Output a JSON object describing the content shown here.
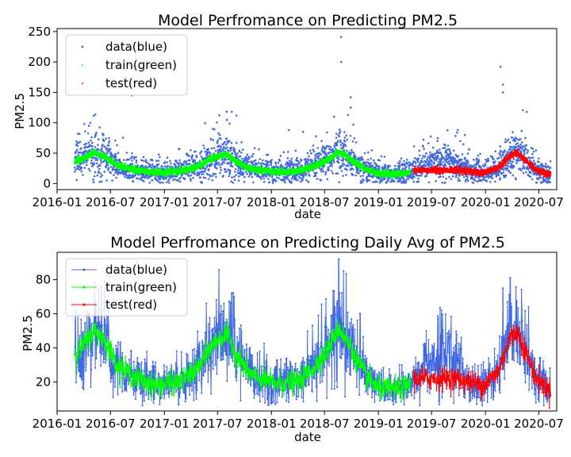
{
  "figure": {
    "background": "#ffffff"
  },
  "chart_data": [
    {
      "type": "scatter",
      "title": "Model Perfromance on Predicting PM2.5",
      "xlabel": "date",
      "ylabel": "PM2.5",
      "x_range": [
        "2016-01-01",
        "2020-08-31"
      ],
      "ylim": [
        -10,
        255
      ],
      "yticks": [
        0,
        50,
        100,
        150,
        200,
        250
      ],
      "xticks": [
        "2016-01",
        "2016-07",
        "2017-01",
        "2017-07",
        "2018-01",
        "2018-07",
        "2019-01",
        "2019-07",
        "2020-01",
        "2020-07"
      ],
      "grid": false,
      "legend": {
        "position": "top-left",
        "marker_only": true
      },
      "series": [
        {
          "name": "data(blue)",
          "color": "#4169e1",
          "role": "data",
          "x_range": [
            "2016-03-01",
            "2020-08-10"
          ],
          "level": [
            [
              0,
              36
            ],
            [
              0.02,
              42
            ],
            [
              0.04,
              50
            ],
            [
              0.06,
              46
            ],
            [
              0.09,
              30
            ],
            [
              0.13,
              22
            ],
            [
              0.17,
              18
            ],
            [
              0.22,
              20
            ],
            [
              0.26,
              28
            ],
            [
              0.28,
              38
            ],
            [
              0.3,
              45
            ],
            [
              0.32,
              48
            ],
            [
              0.34,
              36
            ],
            [
              0.37,
              24
            ],
            [
              0.42,
              19
            ],
            [
              0.47,
              20
            ],
            [
              0.5,
              28
            ],
            [
              0.53,
              38
            ],
            [
              0.555,
              52
            ],
            [
              0.58,
              40
            ],
            [
              0.61,
              24
            ],
            [
              0.64,
              16
            ],
            [
              0.69,
              16
            ],
            [
              0.72,
              24
            ],
            [
              0.75,
              32
            ],
            [
              0.78,
              40
            ],
            [
              0.8,
              32
            ],
            [
              0.83,
              20
            ],
            [
              0.86,
              18
            ],
            [
              0.89,
              26
            ],
            [
              0.915,
              46
            ],
            [
              0.93,
              50
            ],
            [
              0.95,
              36
            ],
            [
              0.97,
              22
            ],
            [
              1,
              15
            ]
          ],
          "outliers": [
            [
              0.56,
              241
            ],
            [
              0.56,
              200
            ],
            [
              0.895,
              192
            ],
            [
              0.9,
              163
            ],
            [
              0.9,
              150
            ],
            [
              0.12,
              145
            ],
            [
              0.58,
              142
            ],
            [
              0.95,
              118
            ],
            [
              0.33,
              118
            ],
            [
              0.34,
              112
            ],
            [
              0.58,
              125
            ],
            [
              0.02,
              98
            ],
            [
              0.03,
              95
            ],
            [
              0.32,
              105
            ],
            [
              0.45,
              88
            ],
            [
              0.48,
              85
            ],
            [
              0.545,
              110
            ],
            [
              0.805,
              88
            ],
            [
              0.82,
              80
            ]
          ]
        },
        {
          "name": "train(green)",
          "color": "#00ff00",
          "role": "fit",
          "x_range": [
            "2016-03-01",
            "2019-04-20"
          ],
          "level": [
            [
              0,
              36
            ],
            [
              0.02,
              42
            ],
            [
              0.04,
              50
            ],
            [
              0.06,
              46
            ],
            [
              0.09,
              30
            ],
            [
              0.13,
              22
            ],
            [
              0.17,
              18
            ],
            [
              0.22,
              20
            ],
            [
              0.26,
              28
            ],
            [
              0.28,
              38
            ],
            [
              0.3,
              45
            ],
            [
              0.32,
              48
            ],
            [
              0.34,
              36
            ],
            [
              0.37,
              24
            ],
            [
              0.42,
              19
            ],
            [
              0.47,
              20
            ],
            [
              0.5,
              28
            ],
            [
              0.53,
              38
            ],
            [
              0.555,
              52
            ],
            [
              0.58,
              40
            ],
            [
              0.61,
              24
            ],
            [
              0.64,
              16
            ],
            [
              0.69,
              16
            ],
            [
              0.72,
              24
            ],
            [
              0.75,
              32
            ],
            [
              0.78,
              40
            ],
            [
              0.8,
              32
            ]
          ]
        },
        {
          "name": "test(red)",
          "color": "#ff0000",
          "role": "fit",
          "x_range": [
            "2019-05-01",
            "2020-08-10"
          ],
          "level": [
            [
              0.8,
              22
            ],
            [
              0.83,
              20
            ],
            [
              0.86,
              18
            ],
            [
              0.89,
              26
            ],
            [
              0.915,
              46
            ],
            [
              0.93,
              50
            ],
            [
              0.95,
              36
            ],
            [
              0.97,
              22
            ],
            [
              1,
              15
            ]
          ]
        }
      ]
    },
    {
      "type": "line",
      "title": "Model Perfromance on Predicting Daily Avg of PM2.5",
      "xlabel": "date",
      "ylabel": "PM2.5",
      "x_range": [
        "2016-01-01",
        "2020-08-31"
      ],
      "ylim": [
        3,
        96
      ],
      "yticks": [
        20,
        40,
        60,
        80
      ],
      "xticks": [
        "2016-01",
        "2016-07",
        "2017-01",
        "2017-07",
        "2018-01",
        "2018-07",
        "2019-01",
        "2019-07",
        "2020-01",
        "2020-07"
      ],
      "grid": false,
      "legend": {
        "position": "top-left",
        "marker_only": false
      },
      "series": [
        {
          "name": "data(blue)",
          "color": "#4169e1",
          "role": "data",
          "x_range": [
            "2016-03-01",
            "2020-08-10"
          ],
          "level": [
            [
              0,
              36
            ],
            [
              0.02,
              42
            ],
            [
              0.04,
              50
            ],
            [
              0.06,
              46
            ],
            [
              0.09,
              30
            ],
            [
              0.13,
              22
            ],
            [
              0.17,
              18
            ],
            [
              0.22,
              20
            ],
            [
              0.26,
              28
            ],
            [
              0.28,
              38
            ],
            [
              0.3,
              45
            ],
            [
              0.32,
              48
            ],
            [
              0.34,
              36
            ],
            [
              0.37,
              24
            ],
            [
              0.42,
              19
            ],
            [
              0.47,
              20
            ],
            [
              0.5,
              28
            ],
            [
              0.53,
              38
            ],
            [
              0.555,
              52
            ],
            [
              0.58,
              40
            ],
            [
              0.61,
              24
            ],
            [
              0.64,
              16
            ],
            [
              0.69,
              16
            ],
            [
              0.72,
              24
            ],
            [
              0.75,
              32
            ],
            [
              0.78,
              40
            ],
            [
              0.8,
              32
            ],
            [
              0.83,
              20
            ],
            [
              0.86,
              18
            ],
            [
              0.89,
              26
            ],
            [
              0.915,
              46
            ],
            [
              0.93,
              50
            ],
            [
              0.95,
              36
            ],
            [
              0.97,
              22
            ],
            [
              1,
              15
            ]
          ],
          "peaks": [
            [
              0.555,
              92
            ],
            [
              0.565,
              85
            ],
            [
              0.915,
              81
            ],
            [
              0.9,
              75
            ],
            [
              0.33,
              72
            ],
            [
              0.335,
              70
            ],
            [
              0.79,
              48
            ],
            [
              0.6,
              60
            ],
            [
              0.03,
              60
            ]
          ]
        },
        {
          "name": "train(green)",
          "color": "#00ff00",
          "role": "fit",
          "x_range": [
            "2016-03-01",
            "2019-04-20"
          ],
          "level": [
            [
              0,
              36
            ],
            [
              0.02,
              42
            ],
            [
              0.04,
              50
            ],
            [
              0.06,
              46
            ],
            [
              0.09,
              30
            ],
            [
              0.13,
              22
            ],
            [
              0.17,
              18
            ],
            [
              0.22,
              20
            ],
            [
              0.26,
              28
            ],
            [
              0.28,
              38
            ],
            [
              0.3,
              45
            ],
            [
              0.32,
              48
            ],
            [
              0.34,
              36
            ],
            [
              0.37,
              24
            ],
            [
              0.42,
              19
            ],
            [
              0.47,
              20
            ],
            [
              0.5,
              28
            ],
            [
              0.53,
              38
            ],
            [
              0.555,
              52
            ],
            [
              0.58,
              40
            ],
            [
              0.61,
              24
            ],
            [
              0.64,
              16
            ],
            [
              0.69,
              16
            ],
            [
              0.72,
              24
            ],
            [
              0.75,
              32
            ],
            [
              0.78,
              40
            ],
            [
              0.8,
              32
            ]
          ]
        },
        {
          "name": "test(red)",
          "color": "#ff0000",
          "role": "fit",
          "x_range": [
            "2019-05-01",
            "2020-08-10"
          ],
          "level": [
            [
              0.8,
              22
            ],
            [
              0.83,
              20
            ],
            [
              0.86,
              18
            ],
            [
              0.89,
              26
            ],
            [
              0.915,
              46
            ],
            [
              0.93,
              50
            ],
            [
              0.95,
              36
            ],
            [
              0.97,
              22
            ],
            [
              1,
              15
            ]
          ]
        }
      ]
    }
  ]
}
